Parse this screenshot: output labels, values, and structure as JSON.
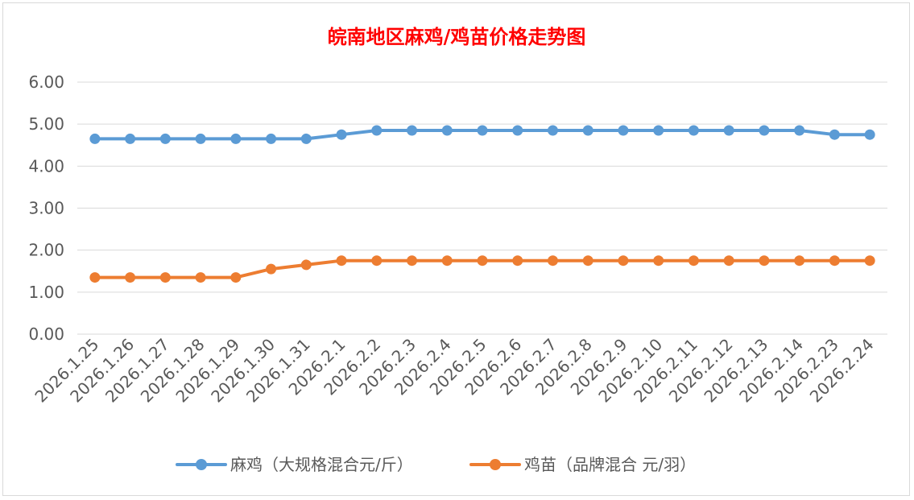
{
  "chart_data": {
    "type": "line",
    "title": "皖南地区麻鸡/鸡苗价格走势图",
    "xlabel": "",
    "ylabel": "",
    "ylim": [
      0,
      6
    ],
    "yticks": [
      "0.00",
      "1.00",
      "2.00",
      "3.00",
      "4.00",
      "5.00",
      "6.00"
    ],
    "grid": true,
    "legend_position": "bottom",
    "categories": [
      "2026.1.25",
      "2026.1.26",
      "2026.1.27",
      "2026.1.28",
      "2026.1.29",
      "2026.1.30",
      "2026.1.31",
      "2026.2.1",
      "2026.2.2",
      "2026.2.3",
      "2026.2.4",
      "2026.2.5",
      "2026.2.6",
      "2026.2.7",
      "2026.2.8",
      "2026.2.9",
      "2026.2.10",
      "2026.2.11",
      "2026.2.12",
      "2026.2.13",
      "2026.2.14",
      "2026.2.23",
      "2026.2.24"
    ],
    "series": [
      {
        "name": "麻鸡（大规格混合元/斤）",
        "color": "#5b9bd5",
        "values": [
          4.65,
          4.65,
          4.65,
          4.65,
          4.65,
          4.65,
          4.65,
          4.75,
          4.85,
          4.85,
          4.85,
          4.85,
          4.85,
          4.85,
          4.85,
          4.85,
          4.85,
          4.85,
          4.85,
          4.85,
          4.85,
          4.75,
          4.75
        ]
      },
      {
        "name": "鸡苗（品牌混合 元/羽）",
        "color": "#ed7d31",
        "values": [
          1.35,
          1.35,
          1.35,
          1.35,
          1.35,
          1.55,
          1.65,
          1.75,
          1.75,
          1.75,
          1.75,
          1.75,
          1.75,
          1.75,
          1.75,
          1.75,
          1.75,
          1.75,
          1.75,
          1.75,
          1.75,
          1.75,
          1.75
        ]
      }
    ]
  }
}
